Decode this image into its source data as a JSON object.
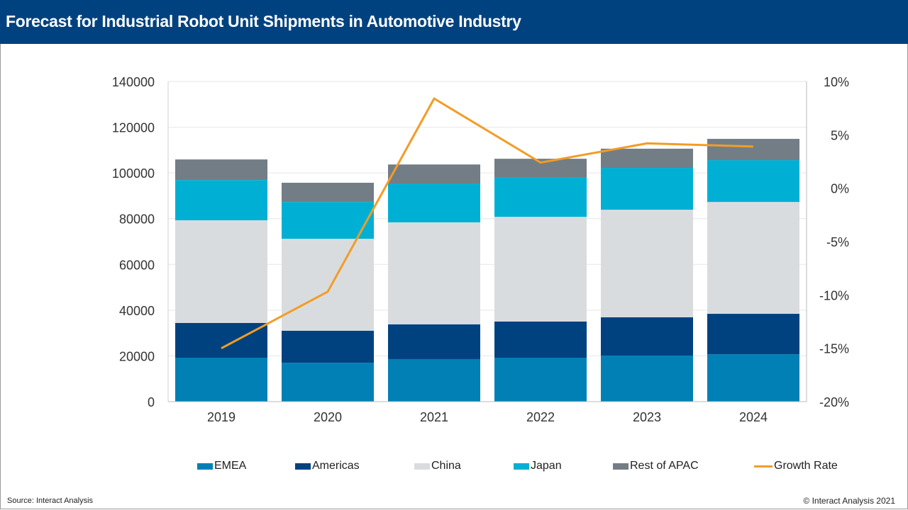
{
  "header": {
    "title": "Forecast for Industrial Robot Unit Shipments in Automotive Industry"
  },
  "footer": {
    "source": "Source: Interact Analysis",
    "copyright": "© Interact Analysis 2021"
  },
  "chart_data": {
    "type": "bar",
    "stacked": true,
    "title": "Forecast for Industrial Robot Unit Shipments in Automotive Industry",
    "categories": [
      "2019",
      "2020",
      "2021",
      "2022",
      "2023",
      "2024"
    ],
    "series": [
      {
        "name": "EMEA",
        "color": "#0080b4",
        "values": [
          19200,
          17000,
          18600,
          19200,
          20100,
          20700
        ]
      },
      {
        "name": "Americas",
        "color": "#00427f",
        "values": [
          15200,
          14000,
          15200,
          15800,
          16800,
          17700
        ]
      },
      {
        "name": "China",
        "color": "#d9dcdf",
        "values": [
          44900,
          40200,
          44600,
          45800,
          47000,
          48900
        ]
      },
      {
        "name": "Japan",
        "color": "#00b0d4",
        "values": [
          17600,
          16100,
          17000,
          17100,
          18300,
          18300
        ]
      },
      {
        "name": "Rest of APAC",
        "color": "#737d86",
        "values": [
          9000,
          8400,
          8300,
          8300,
          8400,
          9300
        ]
      }
    ],
    "line_series": {
      "name": "Growth Rate",
      "color": "#f39c26",
      "axis": "right",
      "values": [
        -15.0,
        -9.7,
        8.4,
        2.4,
        4.2,
        3.9
      ]
    },
    "y_left": {
      "range": [
        0,
        140000
      ],
      "ticks": [
        "0",
        "20000",
        "40000",
        "60000",
        "80000",
        "100000",
        "120000",
        "140000"
      ]
    },
    "y_right": {
      "range": [
        -20,
        10
      ],
      "ticks": [
        "-20%",
        "-15%",
        "-10%",
        "-5%",
        "0%",
        "5%",
        "10%"
      ]
    },
    "grid": true,
    "legend": "bottom"
  }
}
